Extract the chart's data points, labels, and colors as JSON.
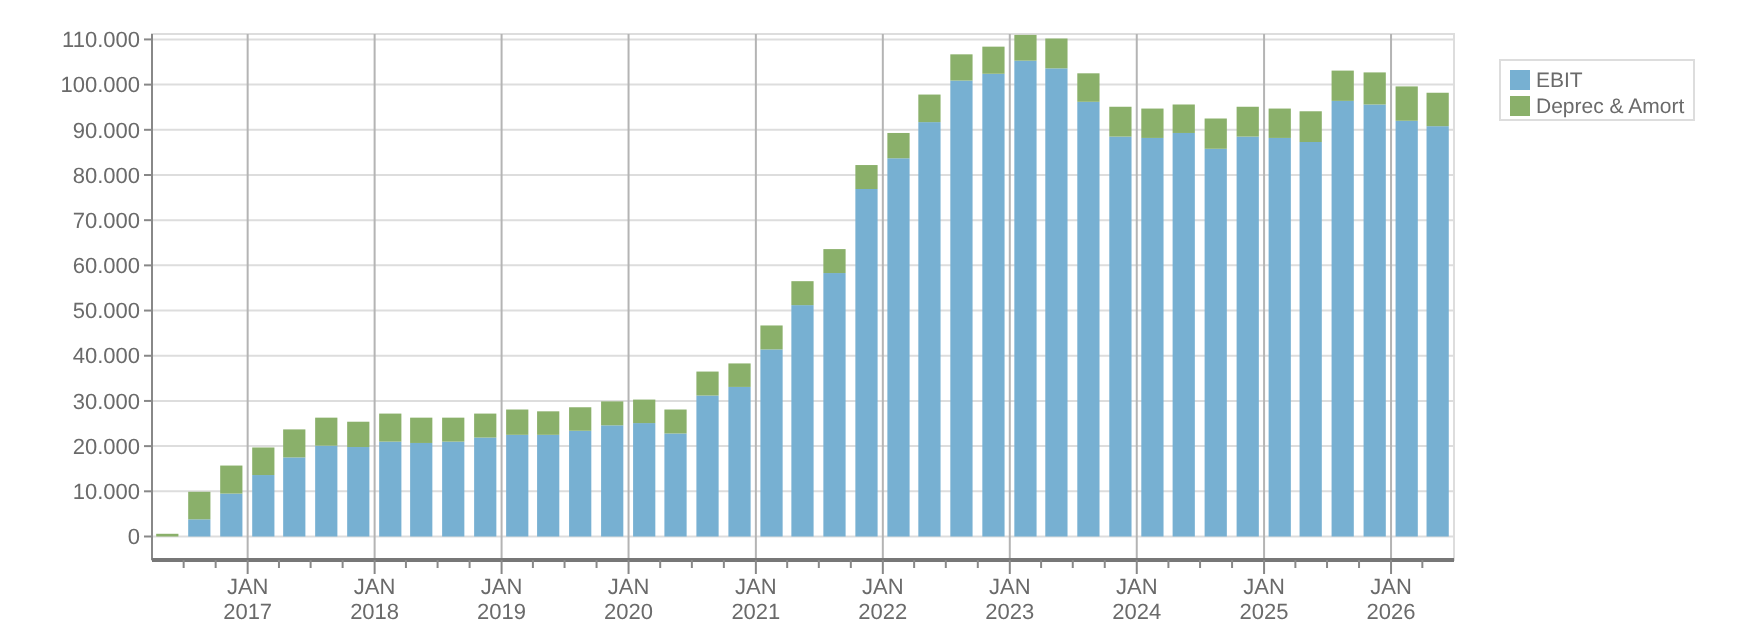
{
  "chart_data": {
    "type": "bar",
    "stacked": true,
    "x": [
      "2016-05-15",
      "2016-08-15",
      "2016-11-15",
      "2017-02-15",
      "2017-05-15",
      "2017-08-15",
      "2017-11-15",
      "2018-02-15",
      "2018-05-15",
      "2018-08-15",
      "2018-11-15",
      "2019-02-15",
      "2019-05-15",
      "2019-08-15",
      "2019-11-15",
      "2020-02-15",
      "2020-05-15",
      "2020-08-15",
      "2020-11-15",
      "2021-02-15",
      "2021-05-15",
      "2021-08-15",
      "2021-11-15",
      "2022-02-15",
      "2022-05-15",
      "2022-08-15",
      "2022-11-15",
      "2023-02-15",
      "2023-05-15",
      "2023-08-15",
      "2023-11-15",
      "2024-02-15",
      "2024-05-15",
      "2024-08-15",
      "2024-11-15",
      "2025-02-15",
      "2025-05-15",
      "2025-08-15",
      "2025-11-15",
      "2026-02-15",
      "2026-05-15"
    ],
    "series": [
      {
        "name": "EBIT",
        "color": "#77b0d2",
        "values": [
          0,
          3800,
          9500,
          13600,
          17500,
          20100,
          19800,
          21000,
          20700,
          21000,
          21900,
          22500,
          22500,
          23400,
          24600,
          25100,
          22800,
          31200,
          33100,
          41400,
          51200,
          58300,
          76900,
          83700,
          91700,
          100900,
          102400,
          105300,
          103600,
          96200,
          88500,
          88200,
          89300,
          85800,
          88500,
          88200,
          87300,
          96400,
          95600,
          92000,
          90800
        ]
      },
      {
        "name": "Deprec & Amort",
        "color": "#8ab06a",
        "values": [
          600,
          6100,
          6200,
          6100,
          6200,
          6200,
          5600,
          6200,
          5600,
          5300,
          5300,
          5600,
          5200,
          5200,
          5300,
          5200,
          5300,
          5300,
          5200,
          5300,
          5300,
          5300,
          5300,
          5600,
          6100,
          5800,
          6000,
          5700,
          6600,
          6300,
          6600,
          6500,
          6300,
          6700,
          6600,
          6500,
          6800,
          6700,
          7100,
          7600,
          7400
        ]
      }
    ],
    "xlim": [
      "2016-04-01",
      "2026-07-01"
    ],
    "xticks": [
      {
        "value": "2016-07-01",
        "label": null
      },
      {
        "value": "2016-10-01",
        "label": null
      },
      {
        "value": "2017-01-01",
        "label": "JAN\n2017"
      },
      {
        "value": "2017-04-01",
        "label": null
      },
      {
        "value": "2017-07-01",
        "label": null
      },
      {
        "value": "2017-10-01",
        "label": null
      },
      {
        "value": "2018-01-01",
        "label": "JAN\n2018"
      },
      {
        "value": "2018-04-01",
        "label": null
      },
      {
        "value": "2018-07-01",
        "label": null
      },
      {
        "value": "2018-10-01",
        "label": null
      },
      {
        "value": "2019-01-01",
        "label": "JAN\n2019"
      },
      {
        "value": "2019-04-01",
        "label": null
      },
      {
        "value": "2019-07-01",
        "label": null
      },
      {
        "value": "2019-10-01",
        "label": null
      },
      {
        "value": "2020-01-01",
        "label": "JAN\n2020"
      },
      {
        "value": "2020-04-01",
        "label": null
      },
      {
        "value": "2020-07-01",
        "label": null
      },
      {
        "value": "2020-10-01",
        "label": null
      },
      {
        "value": "2021-01-01",
        "label": "JAN\n2021"
      },
      {
        "value": "2021-04-01",
        "label": null
      },
      {
        "value": "2021-07-01",
        "label": null
      },
      {
        "value": "2021-10-01",
        "label": null
      },
      {
        "value": "2022-01-01",
        "label": "JAN\n2022"
      },
      {
        "value": "2022-04-01",
        "label": null
      },
      {
        "value": "2022-07-01",
        "label": null
      },
      {
        "value": "2022-10-01",
        "label": null
      },
      {
        "value": "2023-01-01",
        "label": "JAN\n2023"
      },
      {
        "value": "2023-04-01",
        "label": null
      },
      {
        "value": "2023-07-01",
        "label": null
      },
      {
        "value": "2023-10-01",
        "label": null
      },
      {
        "value": "2024-01-01",
        "label": "JAN\n2024"
      },
      {
        "value": "2024-04-01",
        "label": null
      },
      {
        "value": "2024-07-01",
        "label": null
      },
      {
        "value": "2024-10-01",
        "label": null
      },
      {
        "value": "2025-01-01",
        "label": "JAN\n2025"
      },
      {
        "value": "2025-04-01",
        "label": null
      },
      {
        "value": "2025-07-01",
        "label": null
      },
      {
        "value": "2025-10-01",
        "label": null
      },
      {
        "value": "2026-01-01",
        "label": "JAN\n2026"
      },
      {
        "value": "2026-04-01",
        "label": null
      }
    ],
    "ylim": [
      -5200,
      111200
    ],
    "yticks": [
      0,
      {
        "value": 10000,
        "label": "10.000"
      },
      {
        "value": 20000,
        "label": "20.000"
      },
      {
        "value": 30000,
        "label": "30.000"
      },
      {
        "value": 40000,
        "label": "40.000"
      },
      {
        "value": 50000,
        "label": "50.000"
      },
      {
        "value": 60000,
        "label": "60.000"
      },
      {
        "value": 70000,
        "label": "70.000"
      },
      {
        "value": 80000,
        "label": "80.000"
      },
      {
        "value": 90000,
        "label": "90.000"
      },
      {
        "value": 100000,
        "label": "100.000"
      },
      {
        "value": 110000,
        "label": "110.000"
      }
    ],
    "grid": true,
    "legend": "right"
  }
}
